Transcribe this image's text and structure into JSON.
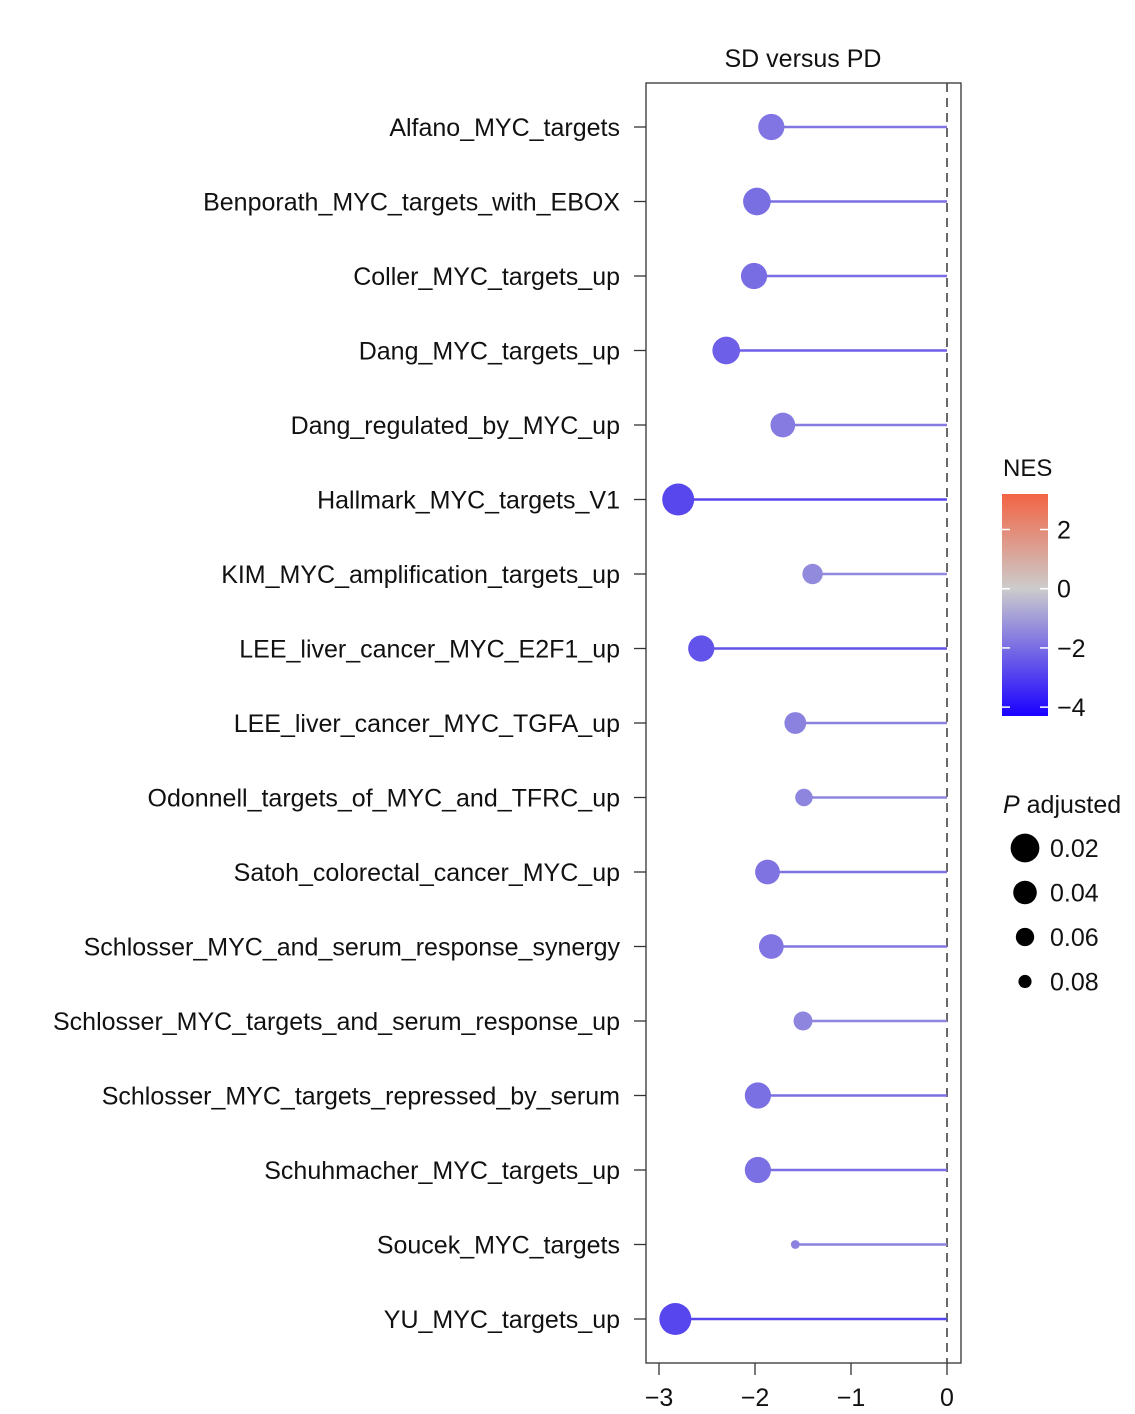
{
  "chart_data": {
    "type": "lollipop",
    "title": "SD versus PD",
    "xlabel": "",
    "ylabel": "",
    "xlim": [
      -3.02,
      0.15
    ],
    "x_ticks": [
      -3,
      -2,
      -1,
      0
    ],
    "x_tick_labels": [
      "−3",
      "−2",
      "−1",
      "0"
    ],
    "reference_line": 0,
    "categories": [
      "Alfano_MYC_targets",
      "Benporath_MYC_targets_with_EBOX",
      "Coller_MYC_targets_up",
      "Dang_MYC_targets_up",
      "Dang_regulated_by_MYC_up",
      "Hallmark_MYC_targets_V1",
      "KIM_MYC_amplification_targets_up",
      "LEE_liver_cancer_MYC_E2F1_up",
      "LEE_liver_cancer_MYC_TGFA_up",
      "Odonnell_targets_of_MYC_and_TFRC_up",
      "Satoh_colorectal_cancer_MYC_up",
      "Schlosser_MYC_and_serum_response_synergy",
      "Schlosser_MYC_targets_and_serum_response_up",
      "Schlosser_MYC_targets_repressed_by_serum",
      "Schuhmacher_MYC_targets_up",
      "Soucek_MYC_targets",
      "YU_MYC_targets_up"
    ],
    "values": [
      -1.83,
      -1.98,
      -2.01,
      -2.3,
      -1.71,
      -2.8,
      -1.4,
      -2.56,
      -1.58,
      -1.49,
      -1.87,
      -1.83,
      -1.5,
      -1.97,
      -1.97,
      -1.58,
      -2.83
    ],
    "nes": [
      -1.83,
      -1.98,
      -2.01,
      -2.3,
      -1.71,
      -2.8,
      -1.4,
      -2.56,
      -1.58,
      -1.49,
      -1.87,
      -1.83,
      -1.5,
      -1.97,
      -1.97,
      -1.58,
      -2.83
    ],
    "p_adjusted": [
      0.04,
      0.035,
      0.04,
      0.035,
      0.045,
      0.02,
      0.06,
      0.04,
      0.055,
      0.07,
      0.045,
      0.045,
      0.065,
      0.04,
      0.04,
      0.1,
      0.02
    ],
    "color_legend": {
      "title": "NES",
      "range": [
        -4.3,
        3.2
      ],
      "ticks": [
        2,
        0,
        -2,
        -4
      ],
      "tick_labels": [
        "2",
        "0",
        "−2",
        "−4"
      ],
      "low_color": "#1a00ff",
      "mid_color": "#cccccc",
      "high_color": "#f26444"
    },
    "size_legend": {
      "title_italic": "P",
      "title_rest": " adjusted",
      "values": [
        0.02,
        0.04,
        0.06,
        0.08
      ],
      "labels": [
        "0.02",
        "0.04",
        "0.06",
        "0.08"
      ]
    }
  }
}
